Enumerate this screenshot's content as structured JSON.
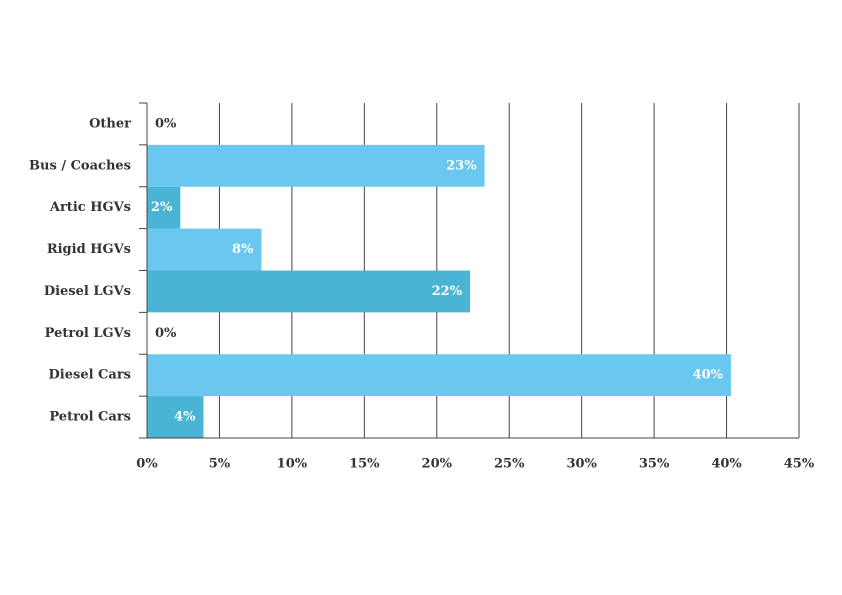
{
  "chart_data": {
    "type": "barh",
    "categories": [
      "Other",
      "Bus / Coaches",
      "Artic HGVs",
      "Rigid HGVs",
      "Diesel LGVs",
      "Petrol LGVs",
      "Diesel Cars",
      "Petrol Cars"
    ],
    "values": [
      0,
      23.3,
      2.3,
      7.9,
      22.3,
      0,
      40.3,
      3.9
    ],
    "value_labels": [
      "0%",
      "23%",
      "2%",
      "8%",
      "22%",
      "0%",
      "40%",
      "4%"
    ],
    "colors": [
      "#6ac8f0",
      "#6ac8f0",
      "#4ab4d4",
      "#6ac8f0",
      "#4ab4d4",
      "#6ac8f0",
      "#6ac8f0",
      "#4ab4d4"
    ],
    "xlim": [
      0,
      45
    ],
    "xticks": [
      {
        "value": 0,
        "label": "0%"
      },
      {
        "value": 5,
        "label": "5%"
      },
      {
        "value": 10,
        "label": "10%"
      },
      {
        "value": 15,
        "label": "15%"
      },
      {
        "value": 20,
        "label": "20%"
      },
      {
        "value": 25,
        "label": "25%"
      },
      {
        "value": 30,
        "label": "30%"
      },
      {
        "value": 35,
        "label": "35%"
      },
      {
        "value": 40,
        "label": "40%"
      },
      {
        "value": 45,
        "label": "45%"
      }
    ],
    "grid": true
  }
}
